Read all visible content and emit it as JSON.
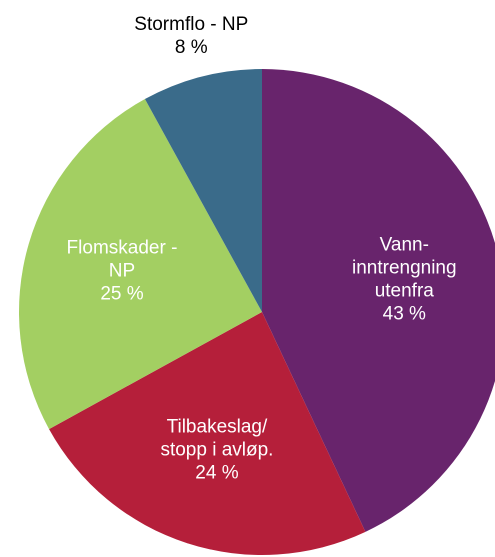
{
  "chart_data": {
    "type": "pie",
    "categories": [
      "Vann-\ninntrengning\nutenfra",
      "Tilbakeslag/\nstopp i avløp.",
      "Flomskader -\nNP",
      "Stormflo - NP"
    ],
    "values": [
      43,
      24,
      25,
      8
    ],
    "value_labels": [
      "43 %",
      "24 %",
      "25 %",
      "8 %"
    ],
    "colors": [
      "#68246c",
      "#b51f3a",
      "#a3cf62",
      "#3a6b8a"
    ]
  }
}
